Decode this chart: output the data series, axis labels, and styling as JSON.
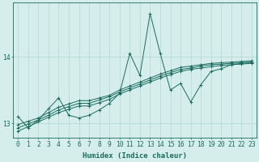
{
  "xlabel": "Humidex (Indice chaleur)",
  "bg_color": "#d5eeeb",
  "line_color": "#1a6b60",
  "grid_color": "#b0d8d5",
  "x_data": [
    0,
    1,
    2,
    3,
    4,
    5,
    6,
    7,
    8,
    9,
    10,
    11,
    12,
    13,
    14,
    15,
    16,
    17,
    18,
    19,
    20,
    21,
    22,
    23
  ],
  "y_main": [
    13.1,
    12.93,
    13.05,
    13.22,
    13.38,
    13.12,
    13.08,
    13.12,
    13.2,
    13.3,
    13.45,
    14.05,
    13.72,
    14.65,
    14.05,
    13.5,
    13.6,
    13.32,
    13.58,
    13.78,
    13.82,
    13.88,
    13.9,
    13.92
  ],
  "y_line1": [
    12.98,
    13.03,
    13.08,
    13.16,
    13.24,
    13.29,
    13.34,
    13.34,
    13.38,
    13.42,
    13.5,
    13.56,
    13.62,
    13.68,
    13.74,
    13.79,
    13.84,
    13.86,
    13.88,
    13.9,
    13.91,
    13.92,
    13.93,
    13.94
  ],
  "y_line2": [
    12.88,
    12.95,
    13.02,
    13.09,
    13.16,
    13.21,
    13.26,
    13.26,
    13.31,
    13.36,
    13.44,
    13.5,
    13.56,
    13.62,
    13.68,
    13.73,
    13.78,
    13.81,
    13.83,
    13.85,
    13.87,
    13.88,
    13.89,
    13.9
  ],
  "y_line3": [
    12.93,
    12.99,
    13.05,
    13.12,
    13.2,
    13.25,
    13.3,
    13.3,
    13.35,
    13.4,
    13.47,
    13.53,
    13.59,
    13.65,
    13.71,
    13.76,
    13.81,
    13.83,
    13.86,
    13.88,
    13.89,
    13.9,
    13.91,
    13.92
  ],
  "ylim_min": 12.78,
  "ylim_max": 14.82,
  "ytick_vals": [
    13.0,
    14.0
  ],
  "xlim_min": -0.5,
  "xlim_max": 23.5,
  "xlabel_fontsize": 6.5,
  "tick_fontsize": 5.8
}
